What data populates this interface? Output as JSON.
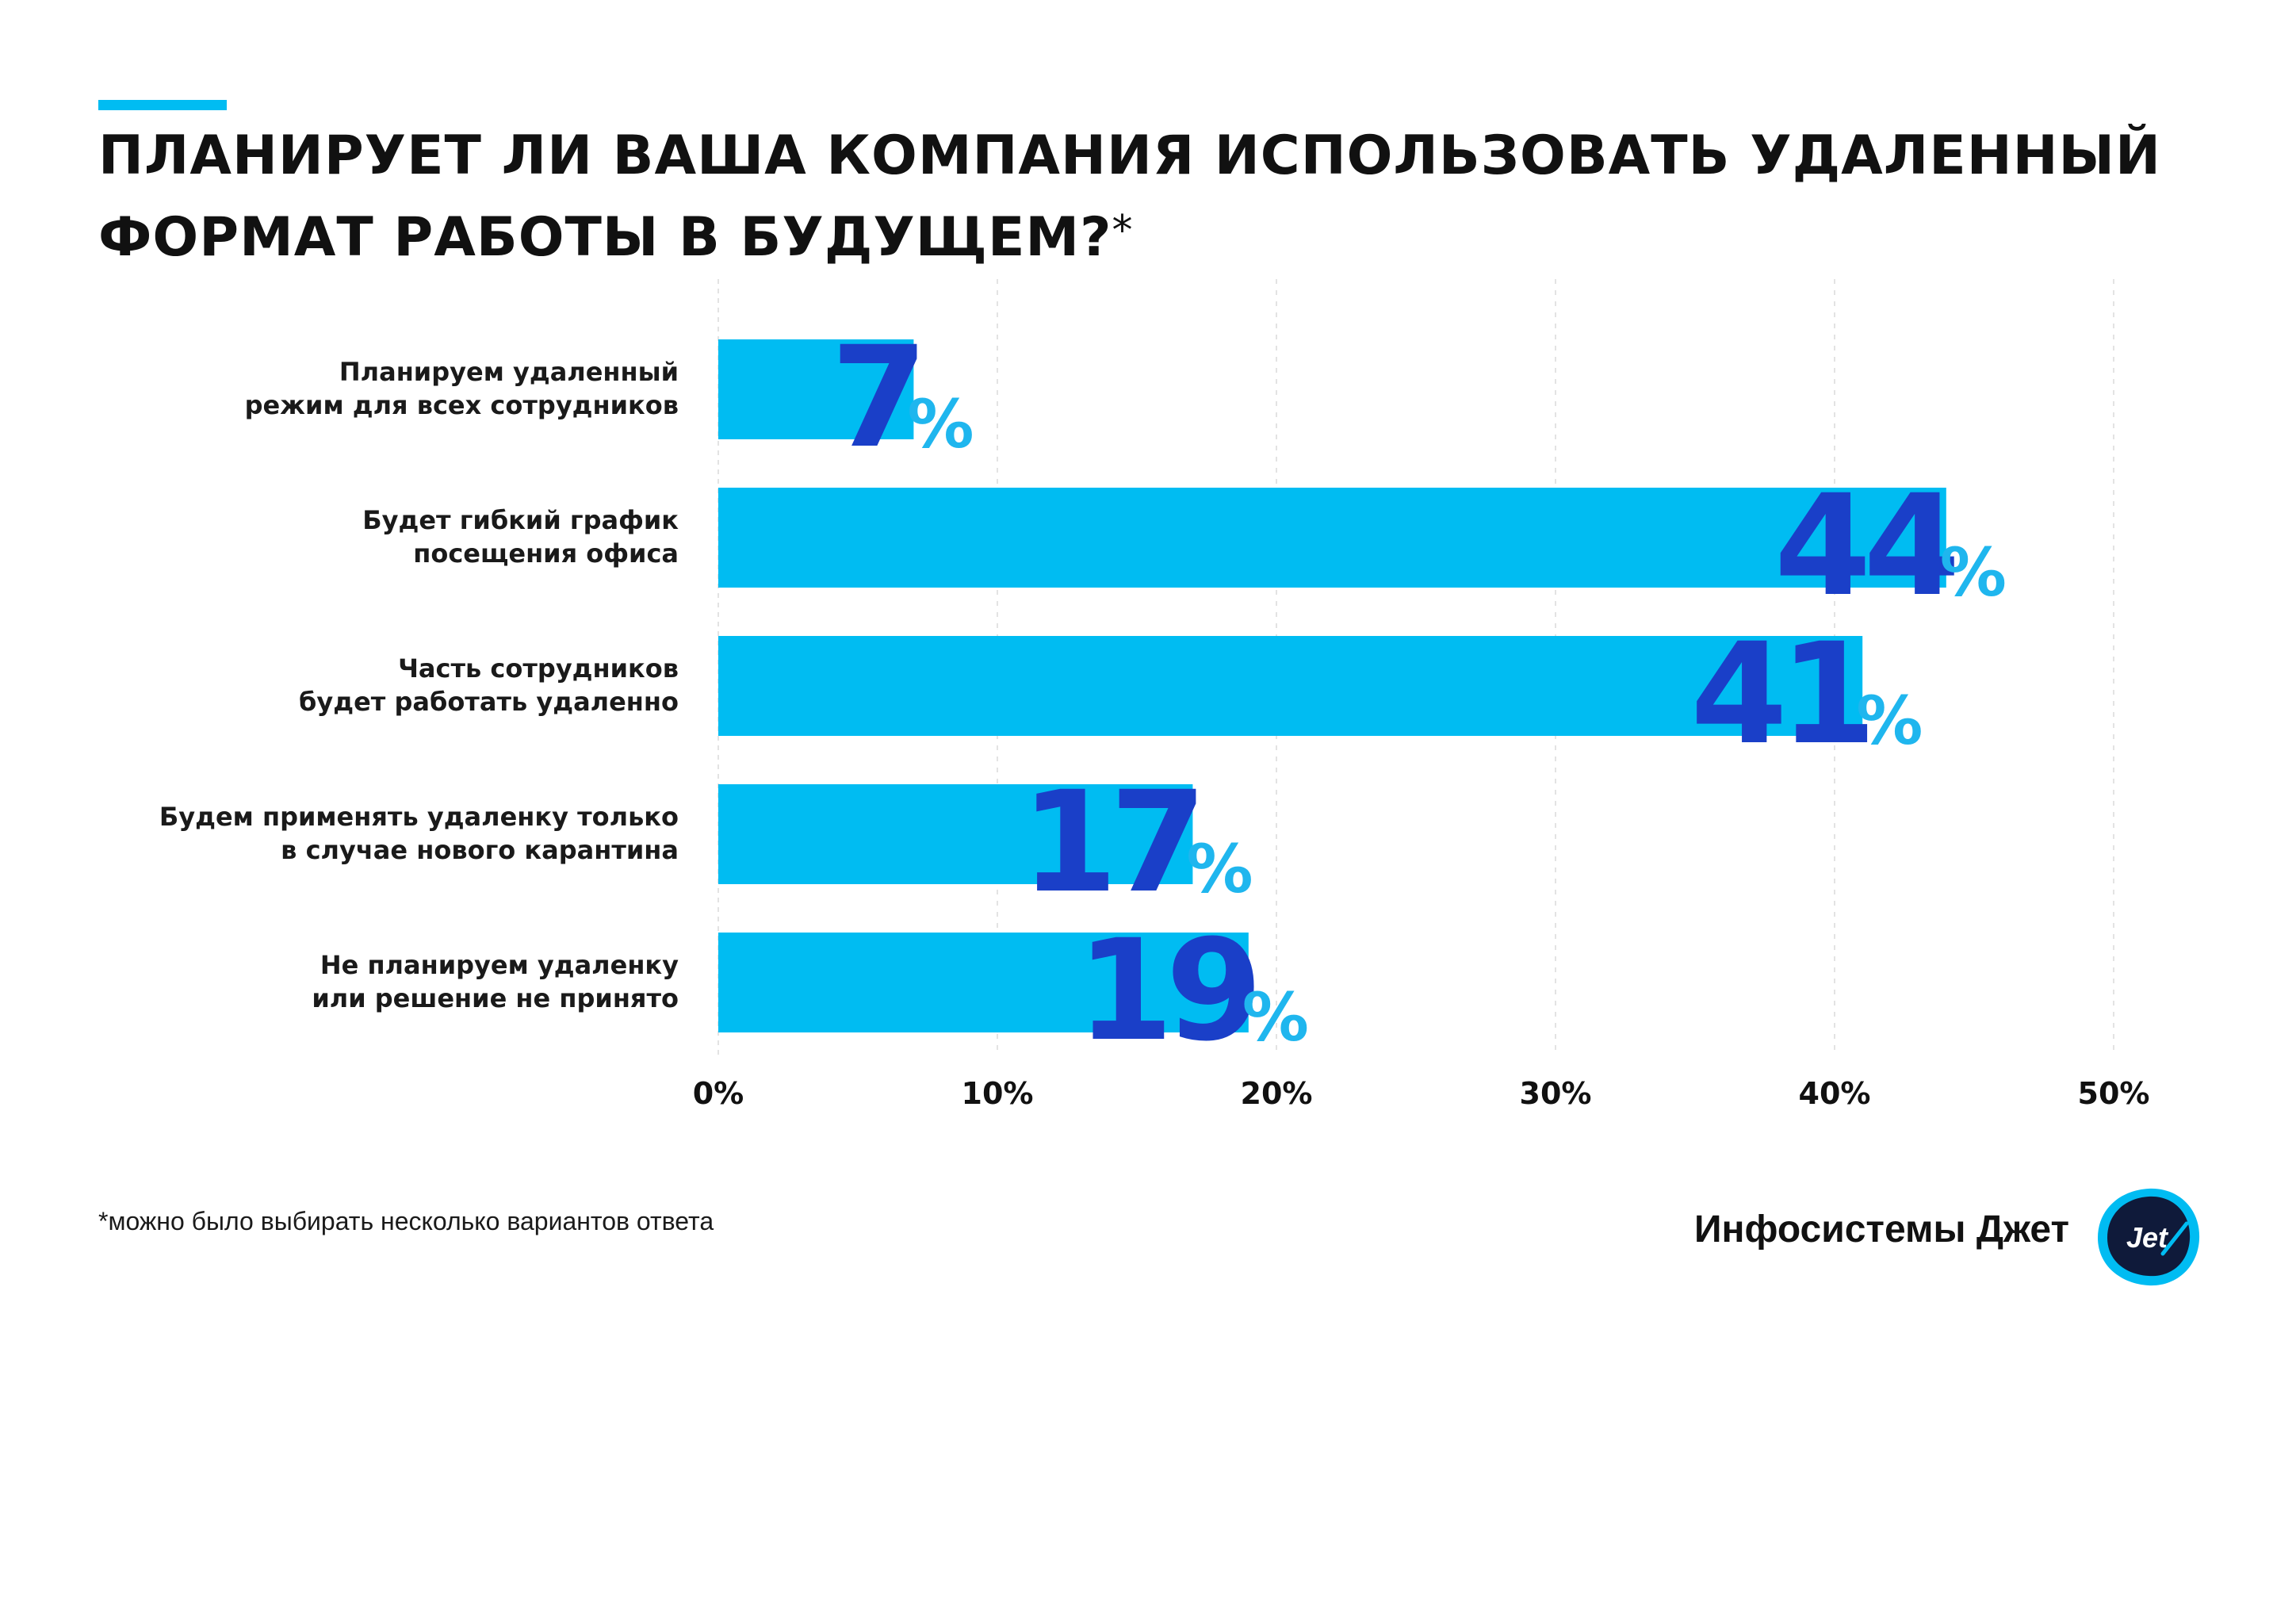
{
  "header": {
    "title": "ПЛАНИРУЕТ ЛИ ВАША КОМПАНИЯ ИСПОЛЬЗОВАТЬ УДАЛЕННЫЙ ФОРМАТ РАБОТЫ В БУДУЩЕМ?",
    "title_mark": "*"
  },
  "chart_data": {
    "type": "bar",
    "orientation": "horizontal",
    "title": "ПЛАНИРУЕТ ЛИ ВАША КОМПАНИЯ ИСПОЛЬЗОВАТЬ УДАЛЕННЫЙ ФОРМАТ РАБОТЫ В БУДУЩЕМ?*",
    "categories": [
      [
        "Планируем удаленный",
        "режим для всех сотрудников"
      ],
      [
        "Будет гибкий график",
        "посещения офиса"
      ],
      [
        "Часть сотрудников",
        "будет работать удаленно"
      ],
      [
        "Будем применять удаленку только",
        "в случае нового карантина"
      ],
      [
        "Не планируем удаленку",
        "или решение не принято"
      ]
    ],
    "values": [
      7,
      44,
      41,
      17,
      19
    ],
    "value_labels": [
      "7",
      "44",
      "41",
      "17",
      "19"
    ],
    "value_suffix": "%",
    "xlim": [
      0,
      50
    ],
    "xticks": [
      0,
      10,
      20,
      30,
      40,
      50
    ],
    "xtick_labels": [
      "0%",
      "10%",
      "20%",
      "30%",
      "40%",
      "50%"
    ],
    "grid": true,
    "legend": "none",
    "colors": {
      "bar": "#00bcf2",
      "value_number": "#1a3fc8",
      "value_percent": "#1fb6ee",
      "grid": "#e3e3e3",
      "label": "#1a1a1a"
    }
  },
  "footer": {
    "footnote": "*можно было выбирать несколько вариантов ответа",
    "brand_name": "Инфосистемы Джет",
    "logo_text": "Jet",
    "logo_icon": "jet-logo-icon"
  }
}
